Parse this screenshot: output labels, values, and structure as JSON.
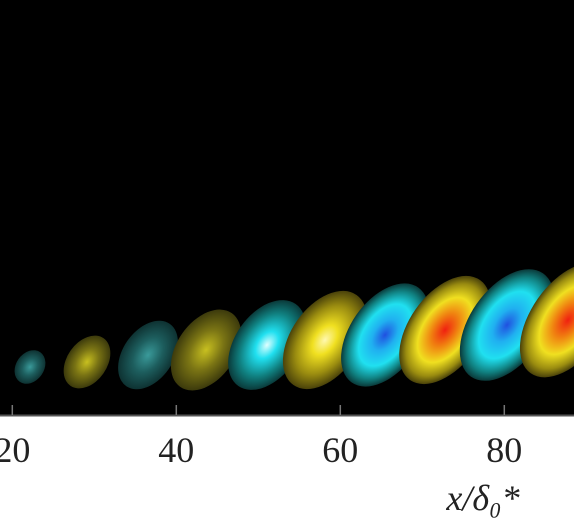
{
  "chart_data": {
    "type": "contour",
    "xlabel": "x/δ₀*",
    "xlim": [
      18.5,
      88.5
    ],
    "xticks": [
      20,
      40,
      60,
      80
    ]
  }
}
